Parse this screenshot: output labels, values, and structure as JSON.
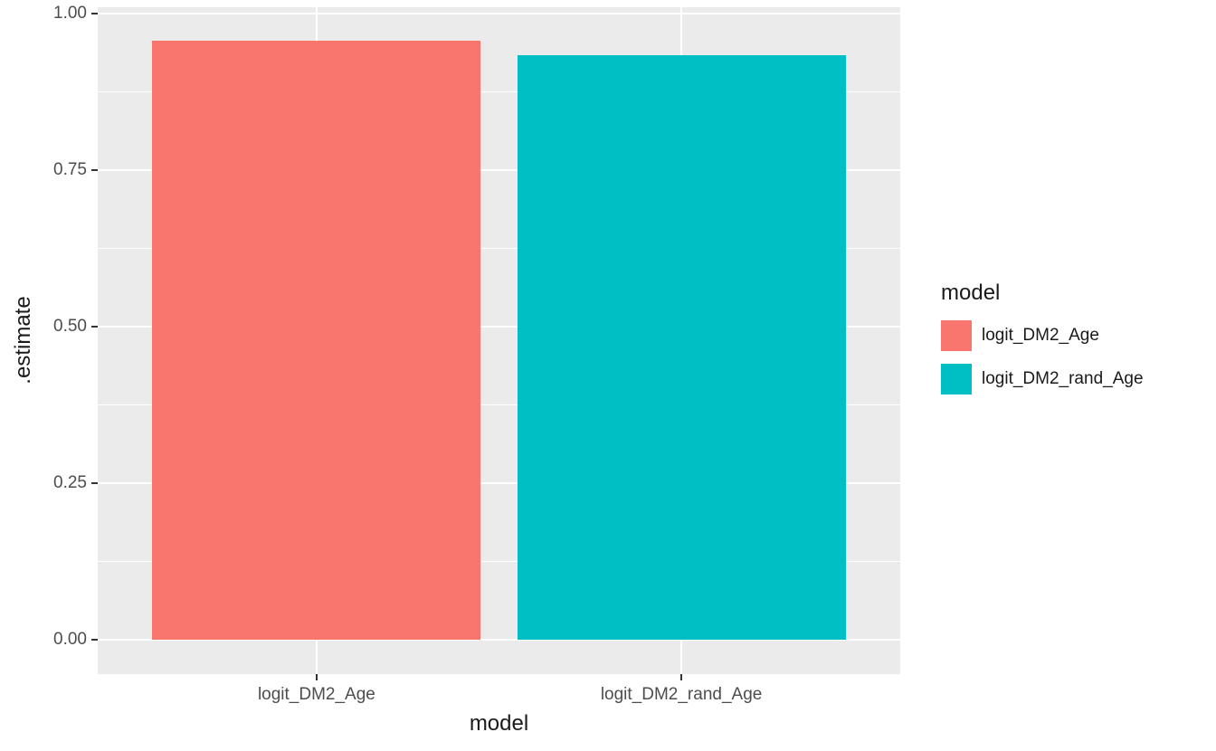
{
  "chart_data": {
    "type": "bar",
    "title": "",
    "categories": [
      "logit_DM2_Age",
      "logit_DM2_rand_Age"
    ],
    "values": [
      0.957,
      0.934
    ],
    "colors": [
      "#F8766D",
      "#00BFC4"
    ],
    "xlabel": "model",
    "ylabel": ".estimate",
    "y_ticks": [
      0.0,
      0.25,
      0.5,
      0.75,
      1.0
    ],
    "y_tick_labels": [
      "0.00",
      "0.25",
      "0.50",
      "0.75",
      "1.00"
    ],
    "y_minor_ticks": [
      0.125,
      0.375,
      0.625,
      0.875
    ],
    "ylim": [
      -0.055,
      1.01
    ],
    "x_unit_range": [
      0.4,
      2.6
    ],
    "bar_rel_width": 0.9,
    "grid": true,
    "panel_bg": "#EBEBEB",
    "grid_color": "#FFFFFF",
    "legend": {
      "position": "right",
      "title": "model",
      "entries": [
        {
          "label": "logit_DM2_Age",
          "color": "#F8766D"
        },
        {
          "label": "logit_DM2_rand_Age",
          "color": "#00BFC4"
        }
      ]
    }
  }
}
